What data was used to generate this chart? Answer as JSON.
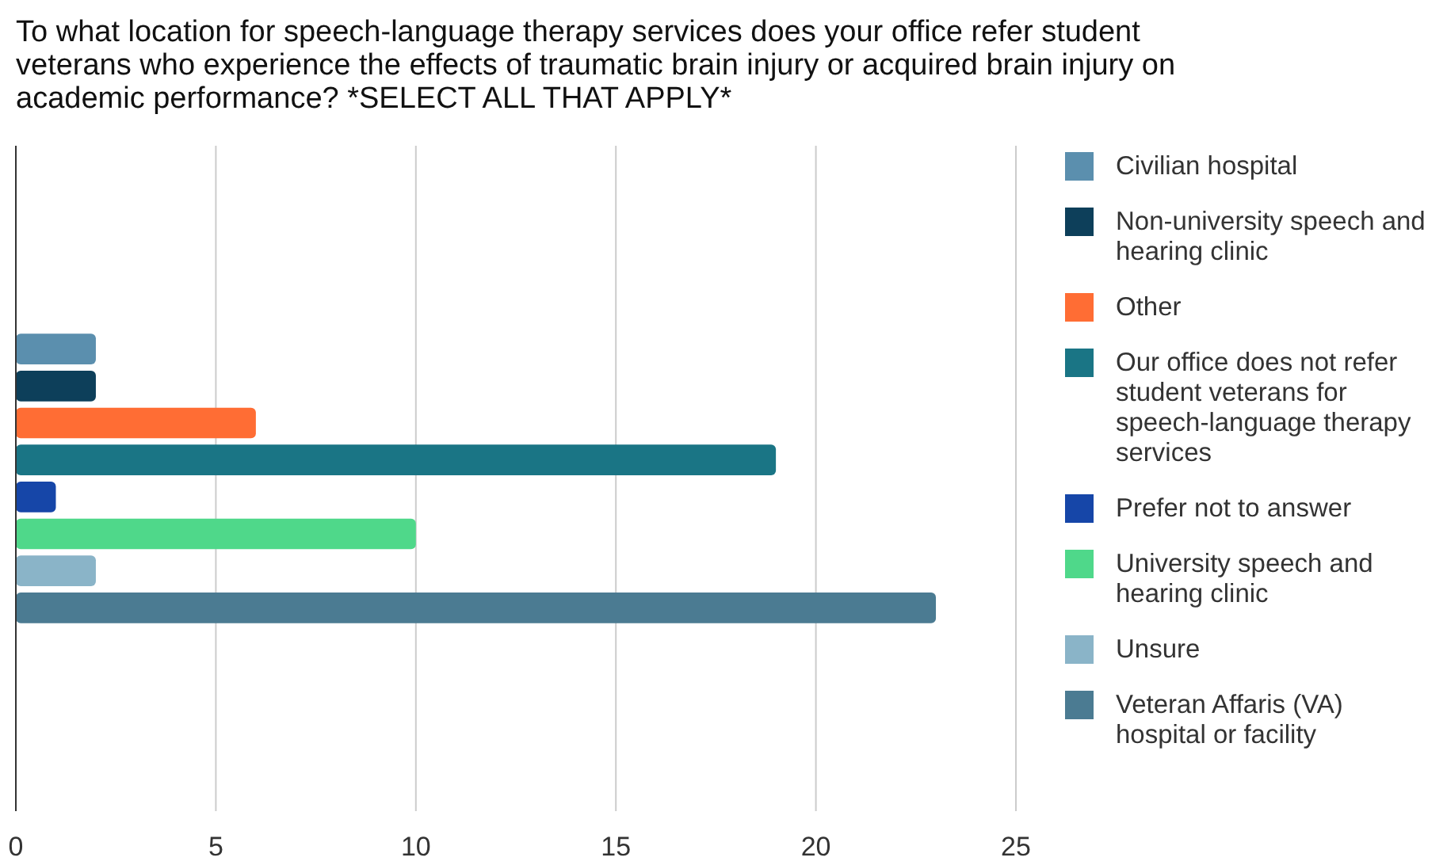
{
  "chart_data": {
    "type": "bar",
    "orientation": "horizontal",
    "title": "To what location for speech-language therapy services does your office refer student veterans who experience the effects of traumatic brain injury or acquired brain injury on academic performance? *SELECT ALL THAT APPLY*",
    "categories": [
      null
    ],
    "series": [
      {
        "name": "Civilian hospital",
        "color": "#5b8fae",
        "values": [
          2
        ]
      },
      {
        "name": "Non-university speech and hearing clinic",
        "color": "#0d3f5a",
        "values": [
          2
        ]
      },
      {
        "name": "Other",
        "color": "#ff6d34",
        "values": [
          6
        ]
      },
      {
        "name": "Our office does not refer student veterans for speech-language therapy services",
        "color": "#1a7585",
        "values": [
          19
        ]
      },
      {
        "name": "Prefer not to answer",
        "color": "#1646a8",
        "values": [
          1
        ]
      },
      {
        "name": "University speech and hearing clinic",
        "color": "#4fd88a",
        "values": [
          10
        ]
      },
      {
        "name": "Unsure",
        "color": "#8ab4c8",
        "values": [
          2
        ]
      },
      {
        "name": "Veteran Affaris (VA) hospital or facility",
        "color": "#4b7b92",
        "values": [
          23
        ]
      }
    ],
    "xlim": [
      0,
      25
    ],
    "xticks": [
      0,
      5,
      10,
      15,
      20,
      25
    ],
    "grid": "x",
    "legend": "right"
  }
}
